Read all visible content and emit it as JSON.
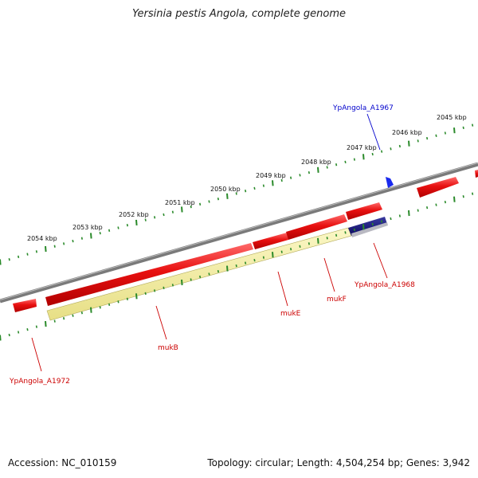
{
  "title": "Yersinia pestis Angola, complete genome",
  "accession": "Accession: NC_010159",
  "summary": "Topology: circular; Length: 4,504,254 bp; Genes: 3,942",
  "colors": {
    "backbone": "#7a7a7a",
    "gene_red": "#e81010",
    "gene_yellow": "#f2ec9c",
    "gene_navy": "#1a1a80",
    "gene_blue": "#1a2aee",
    "tick_green": "#2a8a2a",
    "label_red": "#cc0000",
    "label_blue": "#0000cc"
  },
  "kbp_ticks": [
    "2054 kbp",
    "2053 kbp",
    "2052 kbp",
    "2051 kbp",
    "2050 kbp",
    "2049 kbp",
    "2048 kbp",
    "2047 kbp",
    "2046 kbp",
    "2045 kbp"
  ],
  "gene_labels": {
    "ypangola_a1967": "YpAngola_A1967",
    "ypangola_a1968": "YpAngola_A1968",
    "mukf": "mukF",
    "muke": "mukE",
    "mukb": "mukB",
    "ypangola_a1972": "YpAngola_A1972"
  }
}
